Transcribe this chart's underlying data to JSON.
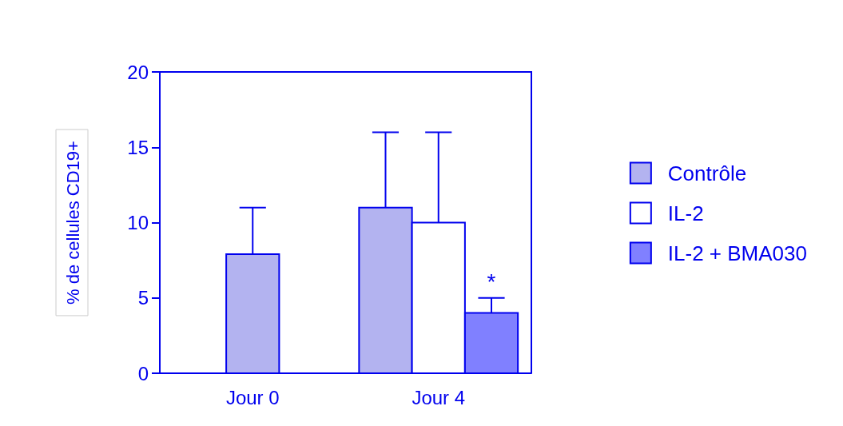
{
  "chart_data": {
    "type": "bar",
    "ylabel": "% de cellules CD19+",
    "categories": [
      "Jour 0",
      "Jour 4"
    ],
    "series": [
      {
        "name": "Contrôle",
        "color": "#b3b3f0",
        "values": [
          7.9,
          11
        ],
        "errors": [
          [
            7.9,
            11
          ],
          [
            11,
            16
          ]
        ]
      },
      {
        "name": "IL-2",
        "color": "#ffffff",
        "values": [
          null,
          10
        ],
        "errors": [
          null,
          [
            10,
            16
          ]
        ]
      },
      {
        "name": "IL-2 + BMA030",
        "color": "#8080ff",
        "values": [
          null,
          4
        ],
        "errors": [
          null,
          [
            4,
            5
          ]
        ]
      }
    ],
    "ylim": [
      0,
      20
    ],
    "yticks": [
      0,
      5,
      10,
      15,
      20
    ],
    "grid": false,
    "legend": "right",
    "annotations": [
      "*"
    ]
  }
}
